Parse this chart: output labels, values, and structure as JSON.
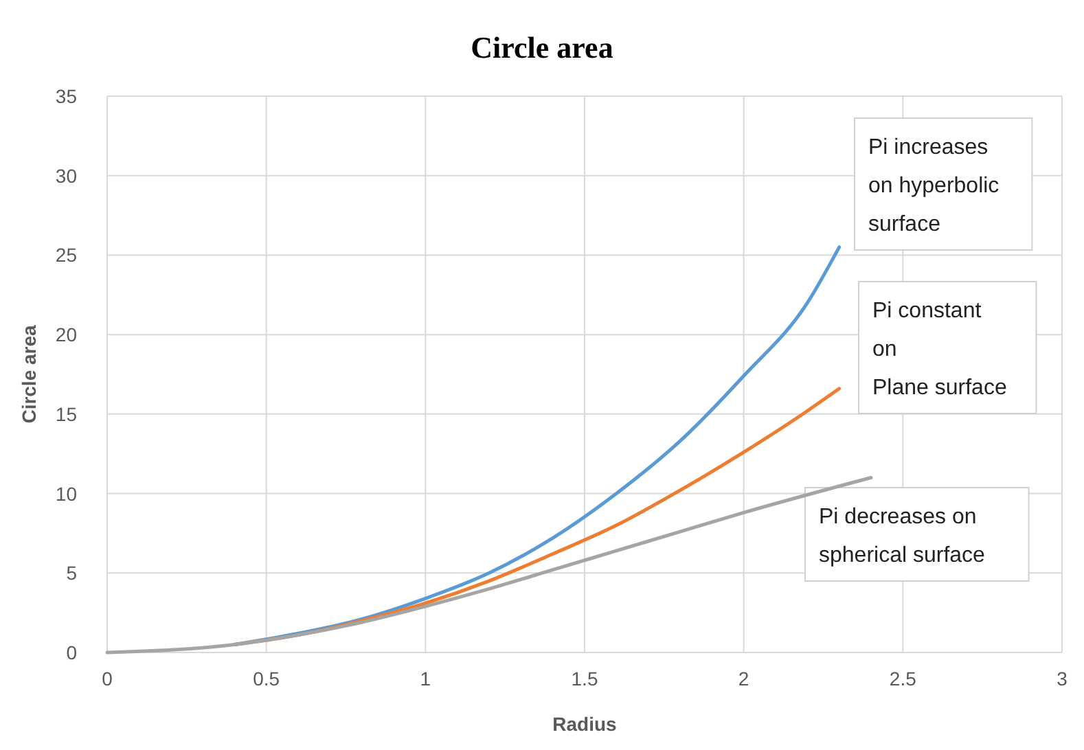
{
  "chart_data": {
    "type": "line",
    "title": "Circle area",
    "xlabel": "Radius",
    "ylabel": "Circle area",
    "xlim": [
      0,
      3
    ],
    "xticks": [
      0,
      0.5,
      1,
      1.5,
      2,
      2.5,
      3
    ],
    "ylim": [
      0,
      35
    ],
    "yticks": [
      0,
      5,
      10,
      15,
      20,
      25,
      30,
      35
    ],
    "grid": true,
    "marker": "none",
    "line_style": "solid",
    "series": [
      {
        "color": "#5b9bd5",
        "x": [
          0.4,
          0.6,
          0.8,
          1,
          1.2,
          1.4,
          1.6,
          1.8,
          2,
          2.2,
          2.3
        ],
        "values": [
          0.5,
          1.2,
          2.1,
          3.4,
          5.0,
          7.2,
          10.0,
          13.3,
          17.4,
          22.0,
          25.5
        ]
      },
      {
        "color": "#ed7d31",
        "x": [
          0.4,
          0.6,
          0.8,
          1,
          1.2,
          1.4,
          1.6,
          1.8,
          2,
          2.2,
          2.3
        ],
        "values": [
          0.5,
          1.1,
          2.0,
          3.1,
          4.5,
          6.2,
          8.0,
          10.2,
          12.6,
          15.2,
          16.6
        ]
      },
      {
        "color": "#a5a5a5",
        "x": [
          0,
          0.4,
          0.6,
          0.8,
          1,
          1.2,
          1.4,
          1.6,
          1.8,
          2,
          2.4
        ],
        "values": [
          0,
          0.5,
          1.1,
          1.9,
          2.9,
          4.0,
          5.2,
          6.4,
          7.6,
          8.8,
          11.0
        ]
      }
    ],
    "annotations": [
      "Pi increases\non hyperbolic\nsurface",
      "Pi constant\non\nPlane surface",
      "Pi decreases on\nspherical surface"
    ]
  }
}
